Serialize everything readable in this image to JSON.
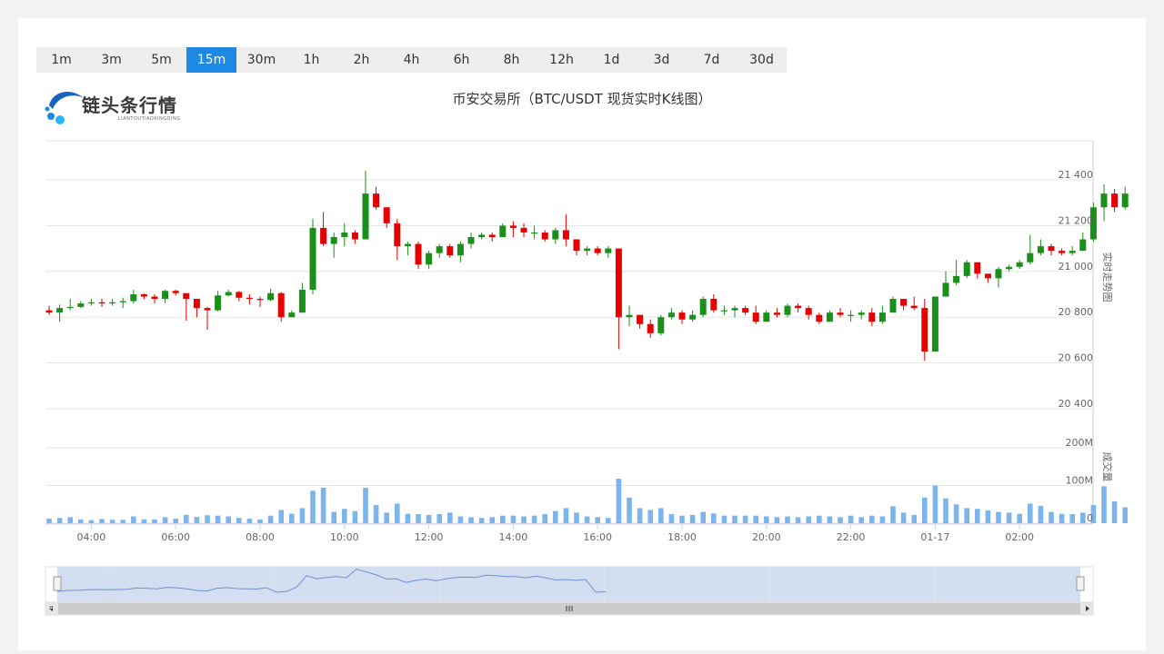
{
  "intervals": [
    "1m",
    "3m",
    "5m",
    "15m",
    "30m",
    "1h",
    "2h",
    "4h",
    "6h",
    "8h",
    "12h",
    "1d",
    "3d",
    "7d",
    "30d"
  ],
  "active_interval": "15m",
  "logo": {
    "text": "链头条行情",
    "subtext": "LIANTOUTIAOXINGQING"
  },
  "colors": {
    "up": "#1a8f1a",
    "down": "#e60000",
    "volume": "#7cb5ec",
    "accent": "#1e88e5",
    "navigator_fill": "#cfdaf0",
    "navigator_line": "#6f8fd6"
  },
  "chart_data": {
    "type": "candlestick",
    "title": "币安交易所（BTC/USDT 现货实时K线图）",
    "price_axis_label": "实时走势图",
    "volume_axis_label": "成交量",
    "price_ticks": [
      {
        "value": 20400,
        "label": "20 400"
      },
      {
        "value": 20600,
        "label": "20 600"
      },
      {
        "value": 20800,
        "label": "20 800"
      },
      {
        "value": 21000,
        "label": "21 000"
      },
      {
        "value": 21200,
        "label": "21 200"
      },
      {
        "value": 21400,
        "label": "21 400"
      }
    ],
    "price_range": [
      20400,
      21400
    ],
    "volume_ticks": [
      {
        "value": 0,
        "label": "0"
      },
      {
        "value": 100,
        "label": "100M"
      },
      {
        "value": 200,
        "label": "200M"
      }
    ],
    "volume_range": [
      0,
      200
    ],
    "x_ticks": [
      {
        "hour": 4,
        "label": "04:00"
      },
      {
        "hour": 6,
        "label": "06:00"
      },
      {
        "hour": 8,
        "label": "08:00"
      },
      {
        "hour": 10,
        "label": "10:00"
      },
      {
        "hour": 12,
        "label": "12:00"
      },
      {
        "hour": 14,
        "label": "14:00"
      },
      {
        "hour": 16,
        "label": "16:00"
      },
      {
        "hour": 18,
        "label": "18:00"
      },
      {
        "hour": 20,
        "label": "20:00"
      },
      {
        "hour": 22,
        "label": "22:00"
      },
      {
        "hour": 24,
        "label": "01-17"
      },
      {
        "hour": 26,
        "label": "02:00"
      }
    ],
    "start_hour": 3.0,
    "interval_hours": 0.25,
    "candles": [
      [
        20830,
        20820,
        20850,
        20810,
        12
      ],
      [
        20820,
        20840,
        20855,
        20780,
        14
      ],
      [
        20840,
        20845,
        20880,
        20830,
        16
      ],
      [
        20845,
        20860,
        20870,
        20840,
        10
      ],
      [
        20860,
        20865,
        20880,
        20850,
        8
      ],
      [
        20865,
        20860,
        20880,
        20845,
        11
      ],
      [
        20860,
        20865,
        20880,
        20850,
        9
      ],
      [
        20865,
        20870,
        20885,
        20840,
        9
      ],
      [
        20870,
        20900,
        20920,
        20860,
        18
      ],
      [
        20900,
        20890,
        20905,
        20880,
        10
      ],
      [
        20890,
        20880,
        20900,
        20860,
        10
      ],
      [
        20880,
        20915,
        20920,
        20860,
        16
      ],
      [
        20915,
        20905,
        20920,
        20895,
        12
      ],
      [
        20905,
        20880,
        20900,
        20785,
        22
      ],
      [
        20880,
        20840,
        20880,
        20800,
        17
      ],
      [
        20840,
        20830,
        20845,
        20745,
        21
      ],
      [
        20830,
        20895,
        20915,
        20825,
        20
      ],
      [
        20895,
        20910,
        20920,
        20890,
        18
      ],
      [
        20910,
        20885,
        20915,
        20870,
        14
      ],
      [
        20885,
        20880,
        20900,
        20855,
        12
      ],
      [
        20880,
        20875,
        20890,
        20845,
        10
      ],
      [
        20875,
        20905,
        20925,
        20870,
        20
      ],
      [
        20905,
        20800,
        20910,
        20780,
        35
      ],
      [
        20800,
        20820,
        20830,
        20800,
        25
      ],
      [
        20820,
        20920,
        20950,
        20820,
        40
      ],
      [
        20920,
        21190,
        21230,
        20900,
        86
      ],
      [
        21190,
        21120,
        21260,
        21110,
        94
      ],
      [
        21120,
        21150,
        21170,
        21060,
        30
      ],
      [
        21150,
        21170,
        21210,
        21110,
        38
      ],
      [
        21170,
        21140,
        21180,
        21120,
        32
      ],
      [
        21140,
        21340,
        21440,
        21140,
        94
      ],
      [
        21340,
        21280,
        21370,
        21270,
        48
      ],
      [
        21280,
        21210,
        21280,
        21190,
        28
      ],
      [
        21210,
        21110,
        21230,
        21050,
        52
      ],
      [
        21110,
        21120,
        21130,
        21070,
        25
      ],
      [
        21120,
        21030,
        21130,
        21010,
        24
      ],
      [
        21030,
        21080,
        21090,
        21010,
        22
      ],
      [
        21080,
        21110,
        21120,
        21060,
        24
      ],
      [
        21110,
        21070,
        21120,
        21060,
        28
      ],
      [
        21070,
        21120,
        21130,
        21040,
        18
      ],
      [
        21120,
        21150,
        21170,
        21100,
        16
      ],
      [
        21150,
        21160,
        21170,
        21140,
        14
      ],
      [
        21160,
        21150,
        21170,
        21130,
        16
      ],
      [
        21150,
        21200,
        21210,
        21150,
        20
      ],
      [
        21200,
        21190,
        21220,
        21150,
        20
      ],
      [
        21190,
        21170,
        21210,
        21150,
        18
      ],
      [
        21170,
        21170,
        21200,
        21140,
        20
      ],
      [
        21170,
        21140,
        21180,
        21130,
        24
      ],
      [
        21140,
        21180,
        21190,
        21120,
        32
      ],
      [
        21180,
        21140,
        21250,
        21110,
        40
      ],
      [
        21140,
        21090,
        21140,
        21070,
        28
      ],
      [
        21090,
        21100,
        21110,
        21070,
        18
      ],
      [
        21100,
        21080,
        21110,
        21070,
        16
      ],
      [
        21080,
        21100,
        21110,
        21060,
        14
      ],
      [
        21100,
        20800,
        21100,
        20660,
        118
      ],
      [
        20800,
        20810,
        20850,
        20760,
        68
      ],
      [
        20810,
        20770,
        20810,
        20750,
        40
      ],
      [
        20770,
        20730,
        20790,
        20710,
        35
      ],
      [
        20730,
        20800,
        20810,
        20720,
        40
      ],
      [
        20800,
        20820,
        20840,
        20790,
        24
      ],
      [
        20820,
        20790,
        20830,
        20770,
        20
      ],
      [
        20790,
        20810,
        20830,
        20780,
        22
      ],
      [
        20810,
        20880,
        20890,
        20800,
        30
      ],
      [
        20880,
        20830,
        20900,
        20820,
        26
      ],
      [
        20830,
        20830,
        20850,
        20810,
        20
      ],
      [
        20830,
        20840,
        20850,
        20800,
        20
      ],
      [
        20840,
        20820,
        20850,
        20810,
        20
      ],
      [
        20820,
        20780,
        20850,
        20770,
        20
      ],
      [
        20780,
        20820,
        20830,
        20780,
        18
      ],
      [
        20820,
        20810,
        20840,
        20800,
        16
      ],
      [
        20810,
        20850,
        20860,
        20800,
        18
      ],
      [
        20850,
        20840,
        20860,
        20820,
        16
      ],
      [
        20840,
        20810,
        20850,
        20790,
        18
      ],
      [
        20810,
        20780,
        20820,
        20770,
        20
      ],
      [
        20780,
        20820,
        20830,
        20780,
        18
      ],
      [
        20820,
        20810,
        20840,
        20800,
        16
      ],
      [
        20810,
        20810,
        20830,
        20780,
        20
      ],
      [
        20810,
        20820,
        20830,
        20790,
        16
      ],
      [
        20820,
        20780,
        20840,
        20760,
        20
      ],
      [
        20780,
        20820,
        20850,
        20770,
        18
      ],
      [
        20820,
        20880,
        20890,
        20820,
        45
      ],
      [
        20880,
        20850,
        20880,
        20830,
        28
      ],
      [
        20850,
        20840,
        20890,
        20830,
        22
      ],
      [
        20840,
        20650,
        20880,
        20610,
        68
      ],
      [
        20650,
        20890,
        20890,
        20650,
        100
      ],
      [
        20890,
        20950,
        21000,
        20890,
        66
      ],
      [
        20950,
        20980,
        21050,
        20940,
        50
      ],
      [
        20980,
        21040,
        21050,
        20970,
        40
      ],
      [
        21040,
        20990,
        21040,
        20970,
        38
      ],
      [
        20990,
        20970,
        20990,
        20950,
        34
      ],
      [
        20970,
        21010,
        21020,
        20930,
        30
      ],
      [
        21010,
        21020,
        21030,
        21000,
        28
      ],
      [
        21020,
        21040,
        21050,
        21010,
        25
      ],
      [
        21040,
        21080,
        21160,
        21030,
        52
      ],
      [
        21080,
        21110,
        21140,
        21070,
        46
      ],
      [
        21110,
        21090,
        21120,
        21070,
        30
      ],
      [
        21090,
        21080,
        21100,
        21070,
        25
      ],
      [
        21080,
        21090,
        21110,
        21070,
        24
      ],
      [
        21090,
        21140,
        21170,
        21090,
        28
      ],
      [
        21140,
        21280,
        21300,
        21130,
        48
      ],
      [
        21280,
        21340,
        21380,
        21220,
        98
      ],
      [
        21340,
        21280,
        21360,
        21260,
        58
      ],
      [
        21280,
        21340,
        21370,
        21270,
        42
      ]
    ]
  }
}
